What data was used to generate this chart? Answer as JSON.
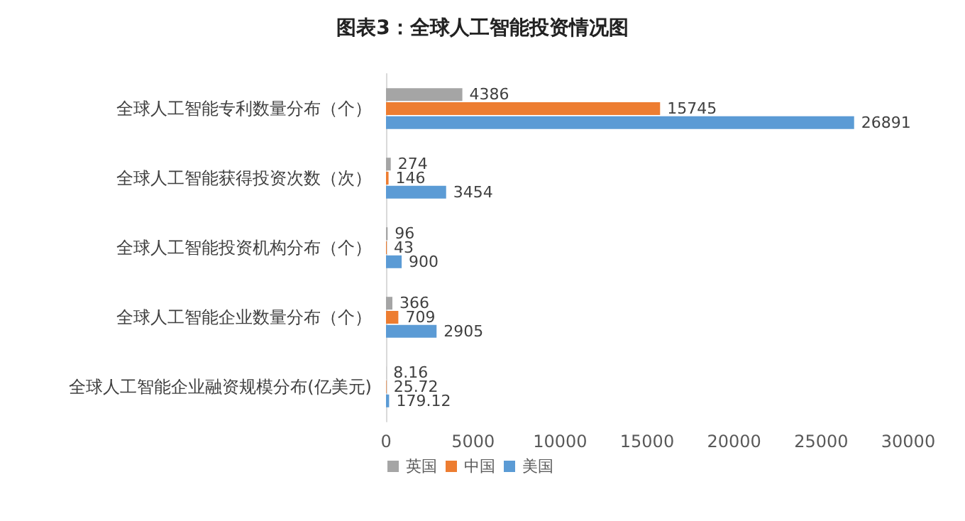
{
  "chart_data": {
    "type": "bar",
    "orientation": "horizontal",
    "title": "图表3：全球人工智能投资情况图",
    "categories": [
      "全球人工智能专利数量分布（个）",
      "全球人工智能获得投资次数（次）",
      "全球人工智能投资机构分布（个）",
      "全球人工智能企业数量分布（个）",
      "全球人工智能企业融资规模分布(亿美元)"
    ],
    "series": [
      {
        "name": "英国",
        "color": "#a5a5a5",
        "values": [
          4386,
          274,
          96,
          366,
          8.16
        ]
      },
      {
        "name": "中国",
        "color": "#ed7d31",
        "values": [
          15745,
          146,
          43,
          709,
          25.72
        ]
      },
      {
        "name": "美国",
        "color": "#5b9bd5",
        "values": [
          26891,
          3454,
          900,
          2905,
          179.12
        ]
      }
    ],
    "xlim": [
      0,
      30000
    ],
    "xticks": [
      0,
      5000,
      10000,
      15000,
      20000,
      25000,
      30000
    ],
    "data_labels": true,
    "grid": false,
    "legend": "bottom left"
  }
}
